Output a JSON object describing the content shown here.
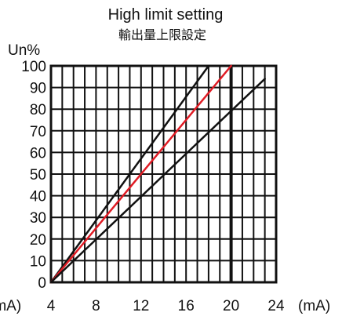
{
  "chart_data": {
    "type": "line",
    "title": "High limit setting",
    "subtitle": "輸出量上限設定",
    "ylabel": "Un%",
    "xlabel_left": "(mA)",
    "xlabel_right": "(mA)",
    "xlim": [
      4,
      24
    ],
    "ylim": [
      0,
      100
    ],
    "grid": true,
    "x_ticks": [
      4,
      8,
      12,
      16,
      20,
      24
    ],
    "y_ticks": [
      0,
      10,
      20,
      30,
      40,
      50,
      60,
      70,
      80,
      90,
      100
    ],
    "series": [
      {
        "color": "#111111",
        "x": [
          4,
          18
        ],
        "y": [
          0,
          100
        ]
      },
      {
        "color": "#e01b24",
        "x": [
          4,
          20
        ],
        "y": [
          0,
          100
        ]
      },
      {
        "color": "#111111",
        "x": [
          4,
          23
        ],
        "y": [
          0,
          94
        ]
      }
    ]
  }
}
